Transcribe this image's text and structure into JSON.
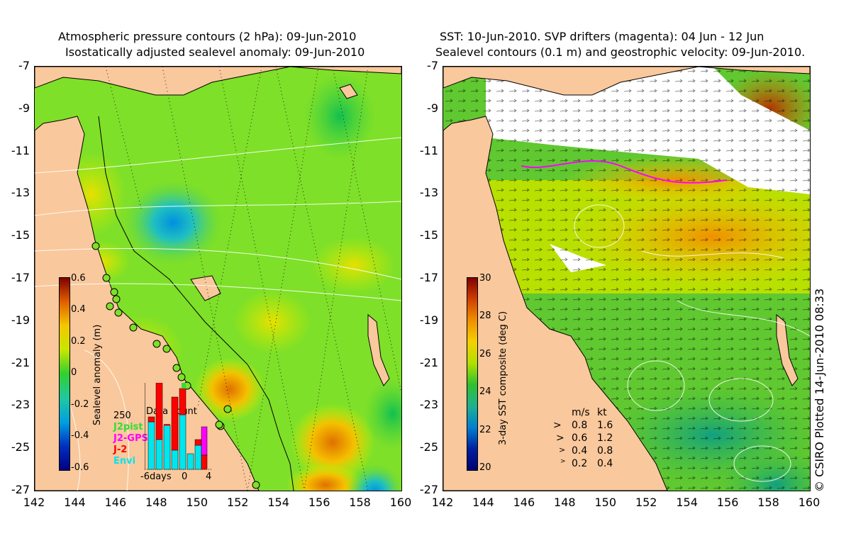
{
  "left": {
    "title1": "Atmospheric pressure contours (2 hPa): 09-Jun-2010",
    "title2": "Isostatically adjusted sealevel anomaly: 09-Jun-2010",
    "colorbar": {
      "title": "Sealevel anomaly (m)",
      "ticks": [
        "0.6",
        "0.4",
        "0.2",
        "0",
        "-0.2",
        "-0.4",
        "-0.6"
      ],
      "colors": [
        "#800000",
        "#e06000",
        "#f5c800",
        "#c8e600",
        "#30d030",
        "#20c8a0",
        "#00a0e0",
        "#0030c0",
        "#000080"
      ]
    },
    "datacount": {
      "title": "Data count",
      "max_label": "250",
      "legend": [
        {
          "label": "J2pist",
          "color": "#33dd33"
        },
        {
          "label": "J2-GPS",
          "color": "#ff00ff"
        },
        {
          "label": "J-2",
          "color": "#ff0000"
        },
        {
          "label": "Envi",
          "color": "#00e5ee"
        }
      ],
      "xlabels": [
        "-6days",
        "0",
        "4"
      ]
    }
  },
  "right": {
    "title1": "SST: 10-Jun-2010. SVP drifters (magenta): 04 Jun - 12 Jun",
    "title2": "Sealevel contours (0.1 m) and geostrophic velocity: 09-Jun-2010.",
    "colorbar": {
      "title": "3-day SST composite (deg C)",
      "ticks": [
        "30",
        "28",
        "26",
        "24",
        "22",
        "20"
      ],
      "colors": [
        "#800000",
        "#d04000",
        "#f09000",
        "#f5d000",
        "#b0e000",
        "#30c030",
        "#20b090",
        "#0080d0",
        "#0020a0",
        "#000070"
      ]
    },
    "speed_legend": {
      "units_ms": "m/s",
      "units_kt": "kt",
      "rows": [
        {
          "ms": "0.8",
          "kt": "1.6"
        },
        {
          "ms": "0.6",
          "kt": "1.2"
        },
        {
          "ms": "0.4",
          "kt": "0.8"
        },
        {
          "ms": "0.2",
          "kt": "0.4"
        }
      ]
    }
  },
  "axes": {
    "y_ticks": [
      "-7",
      "-9",
      "-11",
      "-13",
      "-15",
      "-17",
      "-19",
      "-21",
      "-23",
      "-25",
      "-27"
    ],
    "x_ticks": [
      "142",
      "144",
      "146",
      "148",
      "150",
      "152",
      "154",
      "156",
      "158",
      "160"
    ]
  },
  "credit": "© CSIRO Plotted 14-Jun-2010 08:33",
  "colors": {
    "land": "#f9c89c",
    "ocean_green": "#7ee028",
    "ocean_yellow": "#d8f000"
  }
}
